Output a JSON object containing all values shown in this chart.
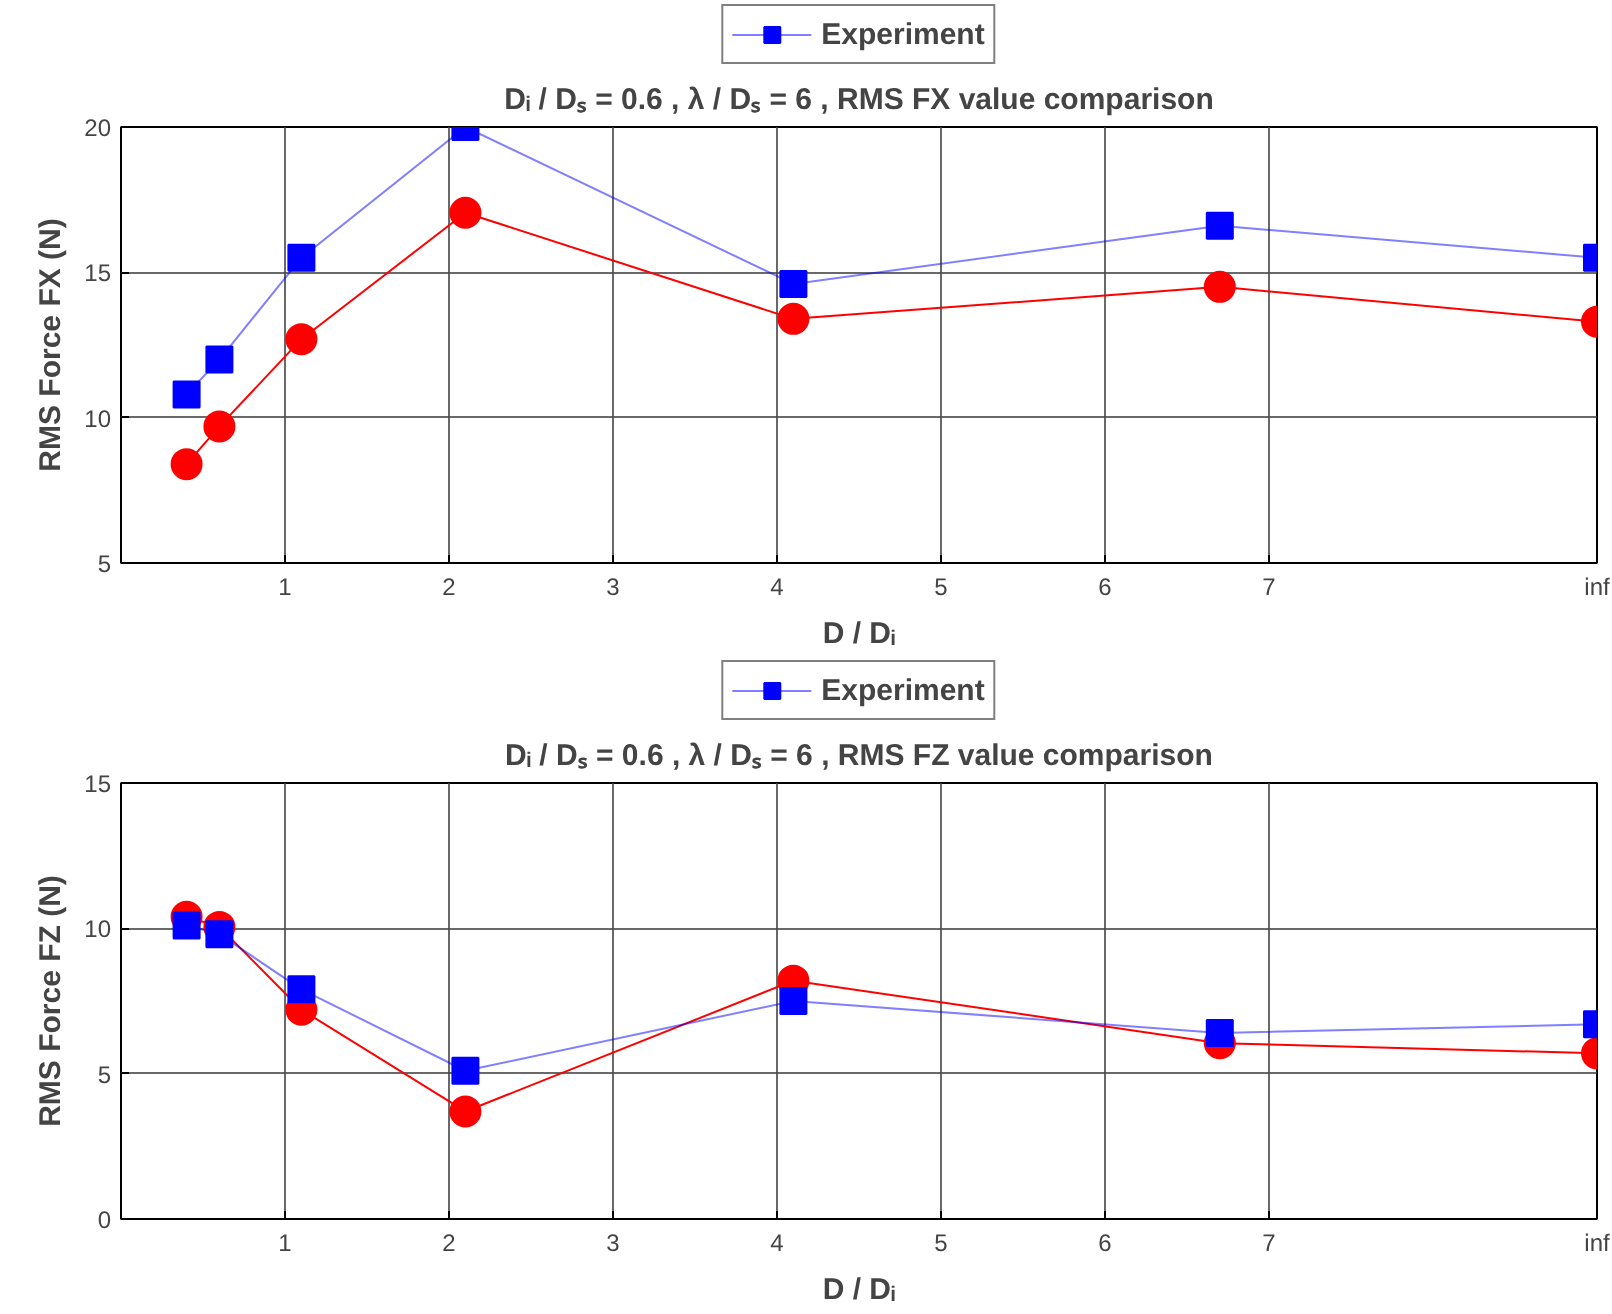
{
  "chart_data": [
    {
      "type": "line",
      "title": "Dᵢ / Dₛ = 0.6 , λ / Dₛ = 6 , RMS FX value comparison",
      "xlabel": "D / Dᵢ",
      "ylabel": "RMS Force FX (N)",
      "x": [
        0.4,
        0.6,
        1.1,
        2.1,
        4.1,
        6.7,
        9
      ],
      "xlim": [
        0,
        9
      ],
      "xticks": [
        1,
        2,
        3,
        4,
        5,
        6,
        7,
        {
          "value": 9,
          "label": "inf"
        }
      ],
      "ylim": [
        5,
        20
      ],
      "yticks": [
        5,
        10,
        15,
        20
      ],
      "grid": true,
      "legend": "top",
      "series": [
        {
          "color": "#ff0000",
          "marker": "circle",
          "values": [
            8.4,
            9.7,
            12.7,
            17.05,
            13.4,
            14.5,
            13.3
          ]
        },
        {
          "name": "Experiment",
          "color": "#0000ff",
          "marker": "square",
          "values": [
            10.8,
            12.0,
            15.5,
            20.0,
            14.6,
            16.6,
            15.5
          ]
        }
      ]
    },
    {
      "type": "line",
      "title": "Dᵢ / Dₛ = 0.6 , λ / Dₛ = 6 , RMS FZ value comparison",
      "xlabel": "D / Dᵢ",
      "ylabel": "RMS Force FZ (N)",
      "x": [
        0.4,
        0.6,
        1.1,
        2.1,
        4.1,
        6.7,
        9
      ],
      "xlim": [
        0,
        9
      ],
      "xticks": [
        1,
        2,
        3,
        4,
        5,
        6,
        7,
        {
          "value": 9,
          "label": "inf"
        }
      ],
      "ylim": [
        0,
        15
      ],
      "yticks": [
        0,
        5,
        10,
        15
      ],
      "grid": true,
      "legend": "top",
      "series": [
        {
          "color": "#ff0000",
          "marker": "circle",
          "values": [
            10.4,
            10.05,
            7.2,
            3.7,
            8.2,
            6.05,
            5.7
          ]
        },
        {
          "name": "Experiment",
          "color": "#0000ff",
          "marker": "square",
          "values": [
            10.1,
            9.8,
            7.9,
            5.1,
            7.5,
            6.4,
            6.7
          ]
        }
      ]
    }
  ]
}
